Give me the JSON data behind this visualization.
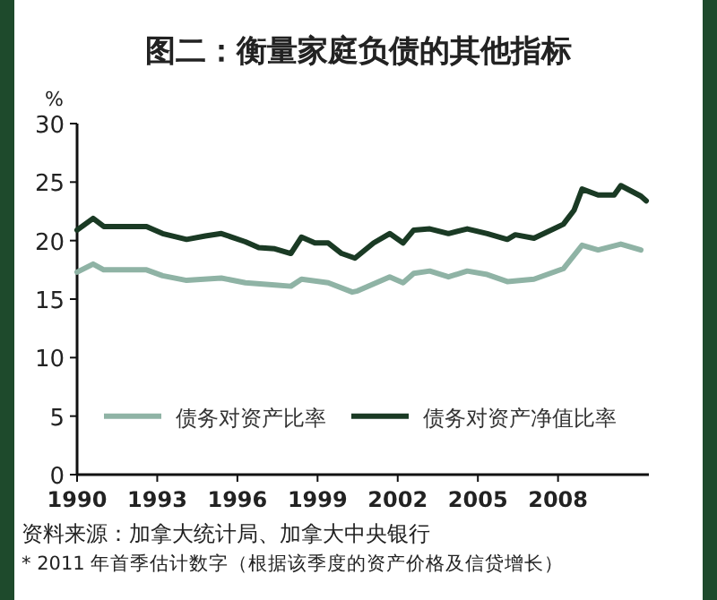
{
  "chart_data": {
    "type": "line",
    "title": "图二：衡量家庭负债的其他指标",
    "ylabel": "%",
    "xlim": [
      1990,
      2011.4
    ],
    "xticks": [
      1990,
      1993,
      1996,
      1999,
      2002,
      2005,
      2008
    ],
    "ylim": [
      0,
      30
    ],
    "yticks": [
      0,
      5,
      10,
      15,
      20,
      25,
      30
    ],
    "grid": false,
    "legend": "bottom",
    "marker": "none",
    "line_style": "solid",
    "series": [
      {
        "name": "债务对资产比率",
        "color": "#8fb3a5",
        "x": [
          1990,
          1990.6,
          1991,
          1992.6,
          1993.2,
          1994.1,
          1995.4,
          1996.3,
          1997.4,
          1998,
          1998.4,
          1999.4,
          2000.3,
          2000.5,
          2001.1,
          2001.7,
          2002.2,
          2002.6,
          2003.2,
          2003.9,
          2004.6,
          2005.35,
          2006.1,
          2007.1,
          2008.2,
          2008.9,
          2009.5,
          2010.35,
          2011.1
        ],
        "values": [
          17.3,
          18,
          17.5,
          17.5,
          17,
          16.6,
          16.8,
          16.4,
          16.2,
          16.1,
          16.7,
          16.4,
          15.6,
          15.7,
          16.3,
          16.9,
          16.4,
          17.2,
          17.4,
          16.9,
          17.4,
          17.1,
          16.5,
          16.7,
          17.6,
          19.6,
          19.2,
          19.7,
          19.2
        ]
      },
      {
        "name": "债务对资产净值比率",
        "color": "#1a3a24",
        "x": [
          1990,
          1990.6,
          1991,
          1992.6,
          1993.2,
          1994.1,
          1994.8,
          1995.4,
          1996.3,
          1996.8,
          1997.4,
          1998,
          1998.4,
          1998.9,
          1999.4,
          1999.9,
          2000.4,
          2001.1,
          2001.7,
          2002.2,
          2002.6,
          2003.2,
          2003.9,
          2004.6,
          2005.35,
          2006.1,
          2006.4,
          2007.1,
          2008.2,
          2008.6,
          2008.9,
          2009.5,
          2010.1,
          2010.35,
          2011.1,
          2011.3
        ],
        "values": [
          20.9,
          21.9,
          21.2,
          21.2,
          20.6,
          20.1,
          20.4,
          20.6,
          19.9,
          19.4,
          19.3,
          18.9,
          20.3,
          19.8,
          19.8,
          18.9,
          18.5,
          19.8,
          20.6,
          19.8,
          20.9,
          21,
          20.6,
          21,
          20.6,
          20.1,
          20.5,
          20.2,
          21.4,
          22.6,
          24.4,
          23.9,
          23.9,
          24.7,
          23.8,
          23.4
        ]
      }
    ],
    "annotations": [
      "资料来源：加拿大统计局、加拿大中央银行",
      "* 2011 年首季估计数字（根据该季度的资产价格及信贷增长）"
    ]
  }
}
